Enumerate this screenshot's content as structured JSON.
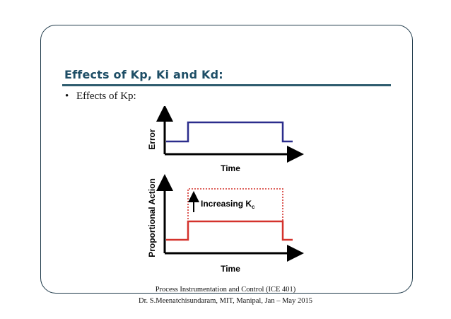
{
  "slide": {
    "title": "Effects of Kp, Ki and Kd:",
    "bullet_marker": "•",
    "bullet_text": "Effects of Kp:"
  },
  "figure": {
    "top": {
      "ylabel": "Error",
      "xlabel": "Time",
      "line_color": "#2b2d8c"
    },
    "bottom": {
      "ylabel": "Proportional Action",
      "xlabel": "Time",
      "annotation": "Increasing K",
      "annotation_sub": "c",
      "line_color": "#d4322c"
    }
  },
  "footer": {
    "line1": "Process Instrumentation and Control (ICE 401)",
    "line2": "Dr. S.Meenatchisundaram, MIT, Manipal, Jan – May 2015"
  }
}
